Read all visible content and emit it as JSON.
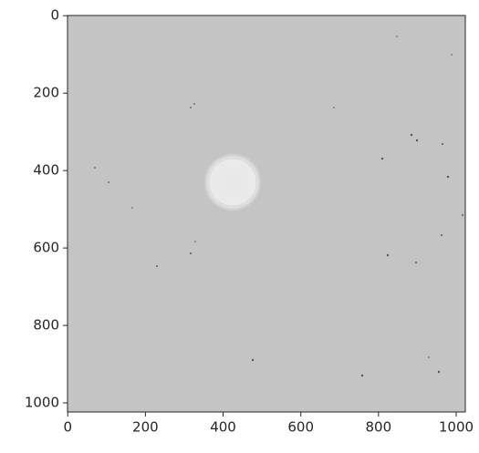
{
  "chart_data": {
    "type": "image",
    "xlim": [
      -0.5,
      1023.5
    ],
    "ylim": [
      1023.5,
      -0.5
    ],
    "xticks": [
      0,
      200,
      400,
      600,
      800,
      1000
    ],
    "yticks": [
      0,
      200,
      400,
      600,
      800,
      1000
    ]
  }
}
